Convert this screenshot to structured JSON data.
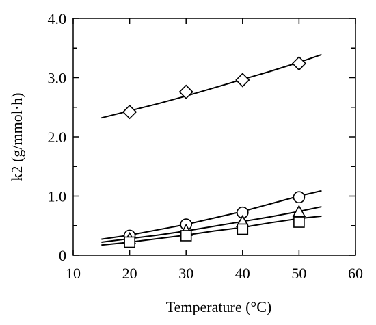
{
  "chart_data": {
    "type": "scatter",
    "title": "",
    "xlabel": "Temperature (°C)",
    "ylabel": "k2 (g/mmol·h)",
    "xlim": [
      10,
      60
    ],
    "ylim": [
      0,
      4.0
    ],
    "x_ticks": [
      10,
      20,
      30,
      40,
      50,
      60
    ],
    "x_tick_labels": [
      "10",
      "20",
      "30",
      "40",
      "50",
      "60"
    ],
    "y_ticks": [
      0,
      1.0,
      2.0,
      3.0,
      4.0
    ],
    "y_tick_labels": [
      "0",
      "1.0",
      "2.0",
      "3.0",
      "4.0"
    ],
    "grid": false,
    "legend": "none",
    "series": [
      {
        "marker": "diamond",
        "x": [
          20,
          30,
          40,
          50
        ],
        "y": [
          2.42,
          2.76,
          2.96,
          3.24
        ],
        "fit_line": {
          "x": [
            15,
            20,
            25,
            30,
            35,
            40,
            45,
            50,
            54
          ],
          "y": [
            2.32,
            2.44,
            2.56,
            2.69,
            2.83,
            2.97,
            3.11,
            3.26,
            3.39
          ]
        }
      },
      {
        "marker": "circle",
        "x": [
          20,
          30,
          40,
          50
        ],
        "y": [
          0.33,
          0.52,
          0.72,
          0.98
        ],
        "fit_line": {
          "x": [
            15,
            20,
            25,
            30,
            35,
            40,
            45,
            50,
            54
          ],
          "y": [
            0.27,
            0.34,
            0.43,
            0.52,
            0.63,
            0.74,
            0.87,
            1.0,
            1.09
          ]
        }
      },
      {
        "marker": "triangle",
        "x": [
          20,
          30,
          40,
          50
        ],
        "y": [
          0.27,
          0.41,
          0.56,
          0.73
        ],
        "fit_line": {
          "x": [
            15,
            20,
            25,
            30,
            35,
            40,
            45,
            50,
            54
          ],
          "y": [
            0.22,
            0.28,
            0.34,
            0.41,
            0.49,
            0.57,
            0.65,
            0.74,
            0.82
          ]
        }
      },
      {
        "marker": "square",
        "x": [
          20,
          30,
          40,
          50
        ],
        "y": [
          0.22,
          0.33,
          0.44,
          0.56
        ],
        "fit_line": {
          "x": [
            15,
            20,
            25,
            30,
            35,
            40,
            45,
            50,
            54
          ],
          "y": [
            0.17,
            0.22,
            0.28,
            0.34,
            0.41,
            0.47,
            0.55,
            0.62,
            0.66
          ]
        }
      }
    ]
  }
}
